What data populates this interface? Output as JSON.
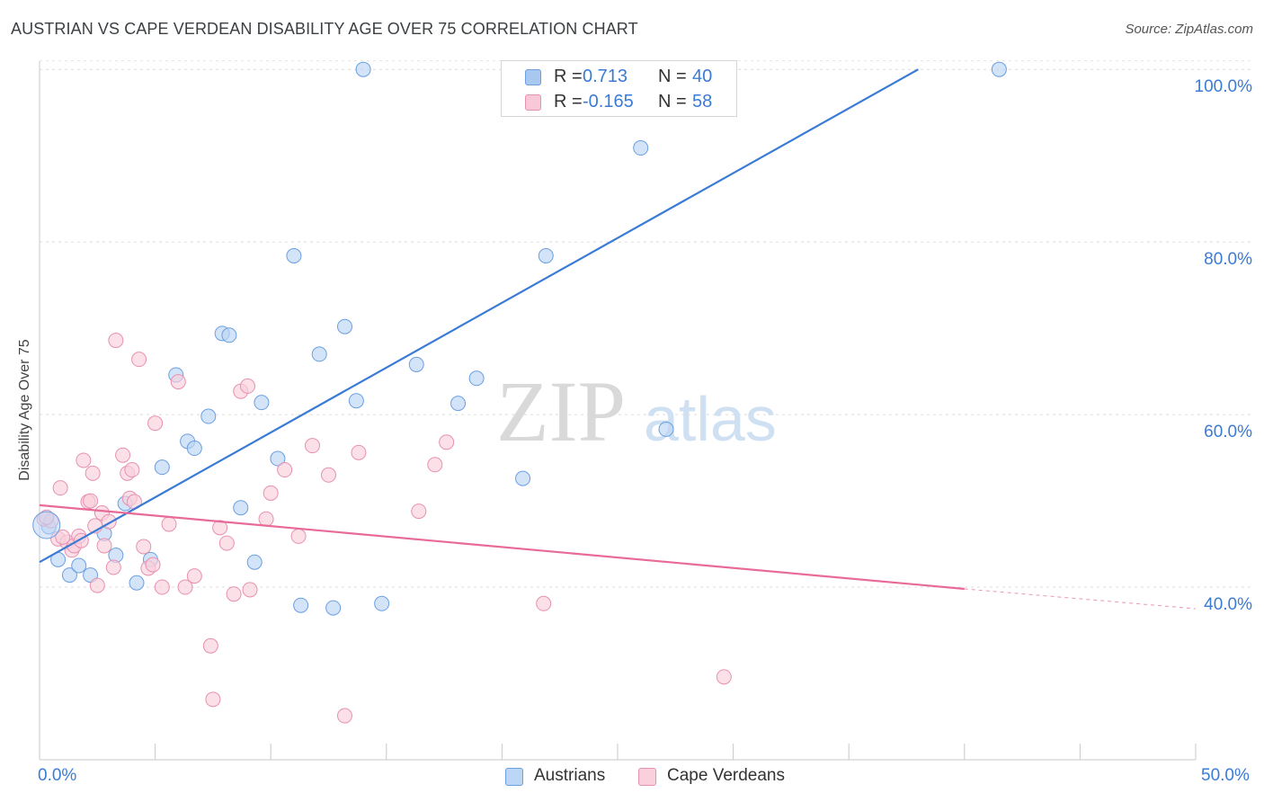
{
  "title": "AUSTRIAN VS CAPE VERDEAN DISABILITY AGE OVER 75 CORRELATION CHART",
  "source": "Source: ZipAtlas.com",
  "watermark": {
    "zip": "ZIP",
    "atlas": "atlas"
  },
  "legend_top": {
    "rows": [
      {
        "r_label": "R =",
        "r_value": "0.713",
        "n_label": "N =",
        "n_value": "40",
        "color": "#a8c8f0",
        "border": "#6a9fe0"
      },
      {
        "r_label": "R =",
        "r_value": "-0.165",
        "n_label": "N =",
        "n_value": "58",
        "color": "#f8c8d8",
        "border": "#e890b0"
      }
    ]
  },
  "legend_bottom": [
    {
      "label": "Austrians",
      "color": "#bcd6f5",
      "border": "#6a9fe0"
    },
    {
      "label": "Cape Verdeans",
      "color": "#f9d0dc",
      "border": "#e890b0"
    }
  ],
  "x_tick_left": "0.0%",
  "x_tick_right": "50.0%",
  "chart_data": {
    "type": "scatter",
    "title": "AUSTRIAN VS CAPE VERDEAN DISABILITY AGE OVER 75 CORRELATION CHART",
    "xlabel": "",
    "ylabel": "Disability Age Over 75",
    "xlim": [
      0,
      50
    ],
    "ylim": [
      20,
      102
    ],
    "y_ticks": [
      {
        "value": 40,
        "label": "40.0%"
      },
      {
        "value": 60,
        "label": "60.0%"
      },
      {
        "value": 80,
        "label": "80.0%"
      },
      {
        "value": 100,
        "label": "100.0%"
      }
    ],
    "grid": true,
    "series": [
      {
        "name": "Austrians",
        "color": "#3a7bd5",
        "fill": "#bcd6f5",
        "stroke": "#6a9fe0",
        "trend": {
          "x": [
            0,
            38
          ],
          "y": [
            42.9,
            100
          ]
        },
        "points": [
          [
            0.4,
            47.0
          ],
          [
            0.8,
            43.2
          ],
          [
            1.3,
            41.4
          ],
          [
            1.7,
            42.5
          ],
          [
            2.2,
            41.4
          ],
          [
            2.8,
            46.2
          ],
          [
            3.3,
            43.7
          ],
          [
            3.7,
            49.7
          ],
          [
            4.2,
            40.5
          ],
          [
            4.8,
            43.2
          ],
          [
            5.3,
            53.9
          ],
          [
            5.9,
            64.6
          ],
          [
            6.4,
            56.9
          ],
          [
            6.7,
            56.1
          ],
          [
            7.3,
            59.8
          ],
          [
            7.9,
            69.4
          ],
          [
            8.2,
            69.2
          ],
          [
            8.7,
            49.2
          ],
          [
            9.3,
            42.9
          ],
          [
            9.6,
            61.4
          ],
          [
            10.3,
            54.9
          ],
          [
            11.0,
            78.4
          ],
          [
            11.3,
            37.9
          ],
          [
            12.1,
            67.0
          ],
          [
            12.7,
            37.6
          ],
          [
            13.2,
            70.2
          ],
          [
            13.7,
            61.6
          ],
          [
            14.0,
            100.0
          ],
          [
            14.8,
            38.1
          ],
          [
            16.3,
            65.8
          ],
          [
            18.1,
            61.3
          ],
          [
            18.9,
            64.2
          ],
          [
            20.9,
            52.6
          ],
          [
            21.9,
            78.4
          ],
          [
            24.0,
            100.0
          ],
          [
            26.0,
            90.9
          ],
          [
            27.1,
            58.3
          ],
          [
            28.1,
            100.0
          ],
          [
            29.8,
            100.0
          ],
          [
            41.5,
            100.0
          ]
        ]
      },
      {
        "name": "Cape Verdeans",
        "color": "#e86a98",
        "fill": "#f9d0dc",
        "stroke": "#e890b0",
        "trend": {
          "x": [
            0,
            40
          ],
          "y": [
            49.5,
            39.8
          ]
        },
        "trend_ext": {
          "x": [
            40,
            50
          ],
          "y": [
            39.8,
            37.5
          ]
        },
        "points": [
          [
            0.2,
            47.9
          ],
          [
            0.5,
            47.7
          ],
          [
            0.8,
            45.6
          ],
          [
            0.9,
            51.5
          ],
          [
            1.2,
            45.2
          ],
          [
            1.4,
            44.3
          ],
          [
            1.5,
            44.8
          ],
          [
            1.7,
            45.9
          ],
          [
            1.8,
            45.4
          ],
          [
            1.9,
            54.7
          ],
          [
            2.1,
            49.9
          ],
          [
            2.2,
            50.0
          ],
          [
            2.3,
            53.2
          ],
          [
            2.5,
            40.2
          ],
          [
            2.7,
            48.6
          ],
          [
            2.8,
            44.8
          ],
          [
            3.0,
            47.6
          ],
          [
            3.2,
            42.3
          ],
          [
            3.3,
            68.6
          ],
          [
            3.6,
            55.3
          ],
          [
            3.8,
            53.2
          ],
          [
            3.9,
            50.3
          ],
          [
            4.0,
            53.6
          ],
          [
            4.1,
            49.9
          ],
          [
            4.3,
            66.4
          ],
          [
            4.5,
            44.7
          ],
          [
            4.7,
            42.2
          ],
          [
            4.9,
            42.6
          ],
          [
            5.0,
            59.0
          ],
          [
            5.3,
            40.0
          ],
          [
            5.6,
            47.3
          ],
          [
            6.0,
            63.8
          ],
          [
            6.3,
            40.0
          ],
          [
            6.7,
            41.3
          ],
          [
            7.4,
            33.2
          ],
          [
            7.5,
            27.0
          ],
          [
            7.8,
            46.9
          ],
          [
            8.1,
            45.1
          ],
          [
            8.4,
            39.2
          ],
          [
            8.7,
            62.7
          ],
          [
            9.0,
            63.3
          ],
          [
            9.1,
            39.7
          ],
          [
            9.8,
            47.9
          ],
          [
            10.0,
            50.9
          ],
          [
            10.6,
            53.6
          ],
          [
            11.2,
            45.9
          ],
          [
            11.8,
            56.4
          ],
          [
            12.5,
            53.0
          ],
          [
            13.2,
            25.1
          ],
          [
            13.8,
            55.6
          ],
          [
            16.4,
            48.8
          ],
          [
            17.1,
            54.2
          ],
          [
            17.6,
            56.8
          ],
          [
            21.8,
            38.1
          ],
          [
            29.6,
            29.6
          ],
          [
            0.3,
            48.1
          ],
          [
            1.0,
            45.8
          ],
          [
            2.4,
            47.1
          ]
        ]
      }
    ]
  }
}
